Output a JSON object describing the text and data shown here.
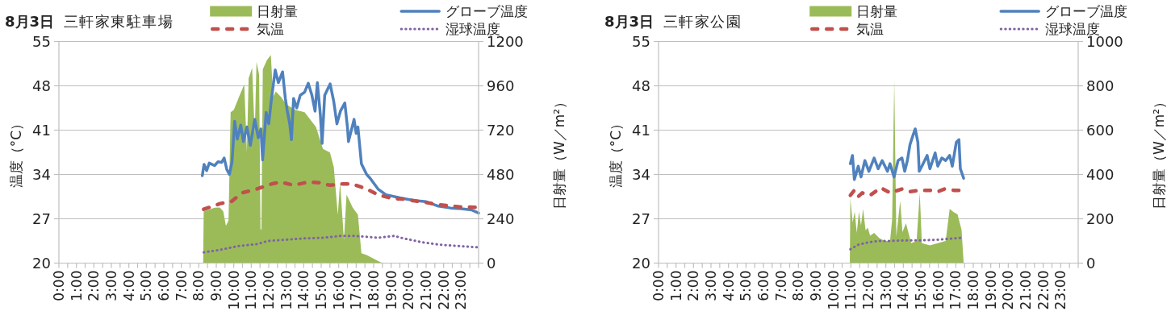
{
  "chart_data": [
    {
      "type": "line",
      "title": "8月3日  三軒家東駐車場",
      "ylabel": "温度（°C）",
      "y2label": "日射量（W／m²）",
      "xlim": [
        0,
        24
      ],
      "xticks": [
        {
          "value": 0,
          "label": "0:00"
        },
        {
          "value": 0.5,
          "label": null
        },
        {
          "value": 1,
          "label": "1:00"
        },
        {
          "value": 1.5,
          "label": null
        },
        {
          "value": 2,
          "label": "2:00"
        },
        {
          "value": 2.5,
          "label": null
        },
        {
          "value": 3,
          "label": "3:00"
        },
        {
          "value": 3.5,
          "label": null
        },
        {
          "value": 4,
          "label": "4:00"
        },
        {
          "value": 4.5,
          "label": null
        },
        {
          "value": 5,
          "label": "5:00"
        },
        {
          "value": 5.5,
          "label": null
        },
        {
          "value": 6,
          "label": "6:00"
        },
        {
          "value": 6.5,
          "label": null
        },
        {
          "value": 7,
          "label": "7:00"
        },
        {
          "value": 7.5,
          "label": null
        },
        {
          "value": 8,
          "label": "8:00"
        },
        {
          "value": 8.5,
          "label": null
        },
        {
          "value": 9,
          "label": "9:00"
        },
        {
          "value": 9.5,
          "label": null
        },
        {
          "value": 10,
          "label": "10:00"
        },
        {
          "value": 10.5,
          "label": null
        },
        {
          "value": 11,
          "label": "11:00"
        },
        {
          "value": 11.5,
          "label": null
        },
        {
          "value": 12,
          "label": "12:00"
        },
        {
          "value": 12.5,
          "label": null
        },
        {
          "value": 13,
          "label": "13:00"
        },
        {
          "value": 13.5,
          "label": null
        },
        {
          "value": 14,
          "label": "14:00"
        },
        {
          "value": 14.5,
          "label": null
        },
        {
          "value": 15,
          "label": "15:00"
        },
        {
          "value": 15.5,
          "label": null
        },
        {
          "value": 16,
          "label": "16:00"
        },
        {
          "value": 16.5,
          "label": null
        },
        {
          "value": 17,
          "label": "17:00"
        },
        {
          "value": 17.5,
          "label": null
        },
        {
          "value": 18,
          "label": "18:00"
        },
        {
          "value": 18.5,
          "label": null
        },
        {
          "value": 19,
          "label": "19:00"
        },
        {
          "value": 19.5,
          "label": null
        },
        {
          "value": 20,
          "label": "20:00"
        },
        {
          "value": 20.5,
          "label": null
        },
        {
          "value": 21,
          "label": "21:00"
        },
        {
          "value": 21.5,
          "label": null
        },
        {
          "value": 22,
          "label": "22:00"
        },
        {
          "value": 22.5,
          "label": null
        },
        {
          "value": 23,
          "label": "23:00"
        },
        {
          "value": 23.5,
          "label": null
        },
        {
          "value": 24,
          "label": null
        }
      ],
      "ylim": [
        20,
        55
      ],
      "yticks": [
        20,
        27,
        34,
        41,
        48,
        55
      ],
      "y2lim": [
        0,
        1200
      ],
      "y2ticks": [
        0,
        240,
        480,
        720,
        960,
        1200
      ],
      "grid": "y",
      "legend": "top",
      "series": [
        {
          "name": "日射量",
          "type": "area",
          "axis": "y2",
          "color": "#9bbb59",
          "x": [
            8.25,
            8.28,
            8.6,
            8.9,
            9.2,
            9.4,
            9.55,
            9.7,
            9.82,
            10.0,
            10.3,
            10.6,
            10.75,
            10.85,
            11.05,
            11.2,
            11.3,
            11.45,
            11.53,
            11.58,
            11.66,
            11.9,
            12.12,
            12.25,
            12.4,
            12.7,
            13.0,
            13.5,
            14.05,
            14.7,
            15.1,
            15.5,
            15.72,
            15.95,
            16.08,
            16.3,
            16.45,
            16.8,
            17.1,
            17.3,
            17.6,
            18.0,
            18.4,
            18.6
          ],
          "values": [
            0,
            282,
            290,
            300,
            301,
            280,
            202,
            230,
            817,
            829,
            900,
            968,
            600,
            1000,
            1057,
            700,
            1090,
            1020,
            182,
            182,
            1050,
            1100,
            1127,
            900,
            929,
            900,
            860,
            830,
            817,
            738,
            619,
            599,
            520,
            262,
            440,
            123,
            371,
            301,
            262,
            54,
            44,
            24,
            4,
            0
          ]
        },
        {
          "name": "グローブ温度",
          "color": "#4f81bd",
          "line_style": "solid",
          "x": [
            8.2,
            8.3,
            8.45,
            8.6,
            8.9,
            9.1,
            9.3,
            9.45,
            9.6,
            9.75,
            9.9,
            10.05,
            10.2,
            10.4,
            10.55,
            10.75,
            10.95,
            11.2,
            11.4,
            11.55,
            11.65,
            11.85,
            12.0,
            12.15,
            12.37,
            12.55,
            12.79,
            12.95,
            13.05,
            13.2,
            13.3,
            13.42,
            13.6,
            13.8,
            14.05,
            14.26,
            14.47,
            14.65,
            14.78,
            14.95,
            15.05,
            15.2,
            15.51,
            15.72,
            15.9,
            16.1,
            16.35,
            16.5,
            16.56,
            16.88,
            17.0,
            17.1,
            17.3,
            17.6,
            17.8,
            18.25,
            18.7,
            19.5,
            20.3,
            21.0,
            21.7,
            22.4,
            23.0,
            23.6,
            24.0
          ],
          "values": [
            33.8,
            35.6,
            34.6,
            35.8,
            35.4,
            36.0,
            35.9,
            36.6,
            34.8,
            34.0,
            36.0,
            42.4,
            39.6,
            41.8,
            39.2,
            41.5,
            38.6,
            42.7,
            39.8,
            41.2,
            36.3,
            43.8,
            42.0,
            45.8,
            50.5,
            48.5,
            50.2,
            46.0,
            44.2,
            42.0,
            39.5,
            46.0,
            44.5,
            46.5,
            47.0,
            48.4,
            46.5,
            44.0,
            48.5,
            43.5,
            38.9,
            46.5,
            48.3,
            45.5,
            42.0,
            44.0,
            45.3,
            41.5,
            39.2,
            42.7,
            40.5,
            41.5,
            35.7,
            34.0,
            33.4,
            31.7,
            30.8,
            30.3,
            29.9,
            29.7,
            29.0,
            28.7,
            28.6,
            28.4,
            27.9
          ]
        },
        {
          "name": "気温",
          "color": "#c0504d",
          "line_style": "dashed",
          "x": [
            8.28,
            8.6,
            9.22,
            9.85,
            10.48,
            11.32,
            12.16,
            12.68,
            13.42,
            14.26,
            14.89,
            15.5,
            16.14,
            16.77,
            17.3,
            17.6,
            18.24,
            19.08,
            19.71,
            20.7,
            21.8,
            22.85,
            23.8
          ],
          "values": [
            28.5,
            28.8,
            29.4,
            29.7,
            31.1,
            31.7,
            32.5,
            32.8,
            32.3,
            32.8,
            32.7,
            32.3,
            32.5,
            32.5,
            32.0,
            31.7,
            30.8,
            30.2,
            30.1,
            29.7,
            29.2,
            28.9,
            28.8
          ]
        },
        {
          "name": "湿球温度",
          "color": "#8064a2",
          "line_style": "dotted",
          "x": [
            8.28,
            9.22,
            10.27,
            11.32,
            11.95,
            13.0,
            14.05,
            15.09,
            16.14,
            16.77,
            17.4,
            18.24,
            19.19,
            19.71,
            20.76,
            21.8,
            22.85,
            23.9
          ],
          "values": [
            21.7,
            22.1,
            22.7,
            23.0,
            23.5,
            23.7,
            23.9,
            24.0,
            24.3,
            24.3,
            24.2,
            24.0,
            24.3,
            23.9,
            23.3,
            22.9,
            22.7,
            22.5
          ]
        }
      ]
    },
    {
      "type": "line",
      "title": "8月3日  三軒家公園",
      "ylabel": "温度（°C）",
      "y2label": "日射量（W／m²）",
      "xlim": [
        0,
        24
      ],
      "xticks": [
        {
          "value": 0,
          "label": "0:00"
        },
        {
          "value": 0.5,
          "label": null
        },
        {
          "value": 1,
          "label": "1:00"
        },
        {
          "value": 1.5,
          "label": null
        },
        {
          "value": 2,
          "label": "2:00"
        },
        {
          "value": 2.5,
          "label": null
        },
        {
          "value": 3,
          "label": "3:00"
        },
        {
          "value": 3.5,
          "label": null
        },
        {
          "value": 4,
          "label": "4:00"
        },
        {
          "value": 4.5,
          "label": null
        },
        {
          "value": 5,
          "label": "5:00"
        },
        {
          "value": 5.5,
          "label": null
        },
        {
          "value": 6,
          "label": "6:00"
        },
        {
          "value": 6.5,
          "label": null
        },
        {
          "value": 7,
          "label": "7:00"
        },
        {
          "value": 7.5,
          "label": null
        },
        {
          "value": 8,
          "label": "8:00"
        },
        {
          "value": 8.5,
          "label": null
        },
        {
          "value": 9,
          "label": "9:00"
        },
        {
          "value": 9.5,
          "label": null
        },
        {
          "value": 10,
          "label": "10:00"
        },
        {
          "value": 10.5,
          "label": null
        },
        {
          "value": 11,
          "label": "11:00"
        },
        {
          "value": 11.5,
          "label": null
        },
        {
          "value": 12,
          "label": "12:00"
        },
        {
          "value": 12.5,
          "label": null
        },
        {
          "value": 13,
          "label": "13:00"
        },
        {
          "value": 13.5,
          "label": null
        },
        {
          "value": 14,
          "label": "14:00"
        },
        {
          "value": 14.5,
          "label": null
        },
        {
          "value": 15,
          "label": "15:00"
        },
        {
          "value": 15.5,
          "label": null
        },
        {
          "value": 16,
          "label": "16:00"
        },
        {
          "value": 16.5,
          "label": null
        },
        {
          "value": 17,
          "label": "17:00"
        },
        {
          "value": 17.5,
          "label": null
        },
        {
          "value": 18,
          "label": "18:00"
        },
        {
          "value": 18.5,
          "label": null
        },
        {
          "value": 19,
          "label": "19:00"
        },
        {
          "value": 19.5,
          "label": null
        },
        {
          "value": 20,
          "label": "20:00"
        },
        {
          "value": 20.5,
          "label": null
        },
        {
          "value": 21,
          "label": "21:00"
        },
        {
          "value": 21.5,
          "label": null
        },
        {
          "value": 22,
          "label": "22:00"
        },
        {
          "value": 22.5,
          "label": null
        },
        {
          "value": 23,
          "label": "23:00"
        },
        {
          "value": 23.5,
          "label": null
        },
        {
          "value": 24,
          "label": null
        }
      ],
      "ylim": [
        20,
        55
      ],
      "yticks": [
        20,
        27,
        34,
        41,
        48,
        55
      ],
      "y2lim": [
        0,
        1000
      ],
      "y2ticks": [
        0,
        200,
        400,
        600,
        800,
        1000
      ],
      "grid": "y",
      "legend": "top",
      "series": [
        {
          "name": "日射量",
          "type": "area",
          "axis": "y2",
          "color": "#9bbb59",
          "x": [
            10.94,
            10.97,
            11.1,
            11.22,
            11.34,
            11.46,
            11.58,
            11.7,
            11.84,
            11.97,
            12.1,
            12.33,
            12.64,
            12.94,
            13.24,
            13.36,
            13.44,
            13.48,
            13.6,
            13.82,
            13.95,
            14.15,
            14.45,
            14.76,
            14.94,
            15.06,
            15.52,
            15.97,
            16.42,
            16.65,
            16.88,
            17.1,
            17.33,
            17.45
          ],
          "values": [
            0,
            293,
            184,
            232,
            136,
            232,
            170,
            245,
            148,
            160,
            124,
            136,
            112,
            100,
            100,
            196,
            612,
            823,
            120,
            281,
            140,
            180,
            90,
            100,
            317,
            90,
            80,
            90,
            100,
            245,
            230,
            220,
            150,
            0
          ]
        },
        {
          "name": "グローブ温度",
          "color": "#4f81bd",
          "line_style": "solid",
          "x": [
            10.97,
            11.09,
            11.2,
            11.42,
            11.58,
            11.8,
            12.03,
            12.33,
            12.56,
            12.79,
            13.09,
            13.24,
            13.47,
            13.7,
            13.92,
            14.08,
            14.23,
            14.38,
            14.53,
            14.68,
            14.83,
            14.91,
            15.06,
            15.36,
            15.52,
            15.82,
            15.97,
            16.2,
            16.42,
            16.65,
            16.8,
            17.03,
            17.18,
            17.26,
            17.45
          ],
          "values": [
            35.7,
            37.0,
            33.2,
            35.3,
            33.6,
            36.2,
            34.5,
            36.6,
            34.9,
            36.2,
            34.5,
            35.7,
            33.6,
            36.2,
            36.6,
            34.5,
            36.2,
            38.7,
            40.0,
            41.2,
            39.1,
            34.5,
            35.3,
            37.0,
            34.9,
            37.4,
            35.3,
            36.6,
            36.2,
            37.0,
            35.3,
            39.1,
            39.5,
            34.9,
            33.4
          ]
        },
        {
          "name": "気温",
          "color": "#c0504d",
          "line_style": "dashed",
          "x": [
            10.97,
            11.2,
            11.42,
            11.65,
            12.1,
            12.71,
            13.24,
            13.92,
            14.38,
            14.98,
            15.52,
            15.97,
            16.35,
            16.88,
            17.41
          ],
          "values": [
            30.7,
            31.5,
            30.5,
            31.1,
            30.7,
            31.9,
            31.1,
            31.7,
            31.3,
            31.5,
            31.5,
            31.3,
            31.7,
            31.5,
            31.5
          ]
        },
        {
          "name": "湿球温度",
          "color": "#8064a2",
          "line_style": "dotted",
          "x": [
            10.97,
            11.42,
            12.03,
            12.64,
            13.24,
            14.15,
            15.06,
            15.97,
            16.88,
            17.41
          ],
          "values": [
            22.2,
            22.9,
            23.3,
            23.5,
            23.5,
            23.6,
            23.6,
            23.7,
            23.9,
            24.0
          ]
        }
      ]
    }
  ]
}
